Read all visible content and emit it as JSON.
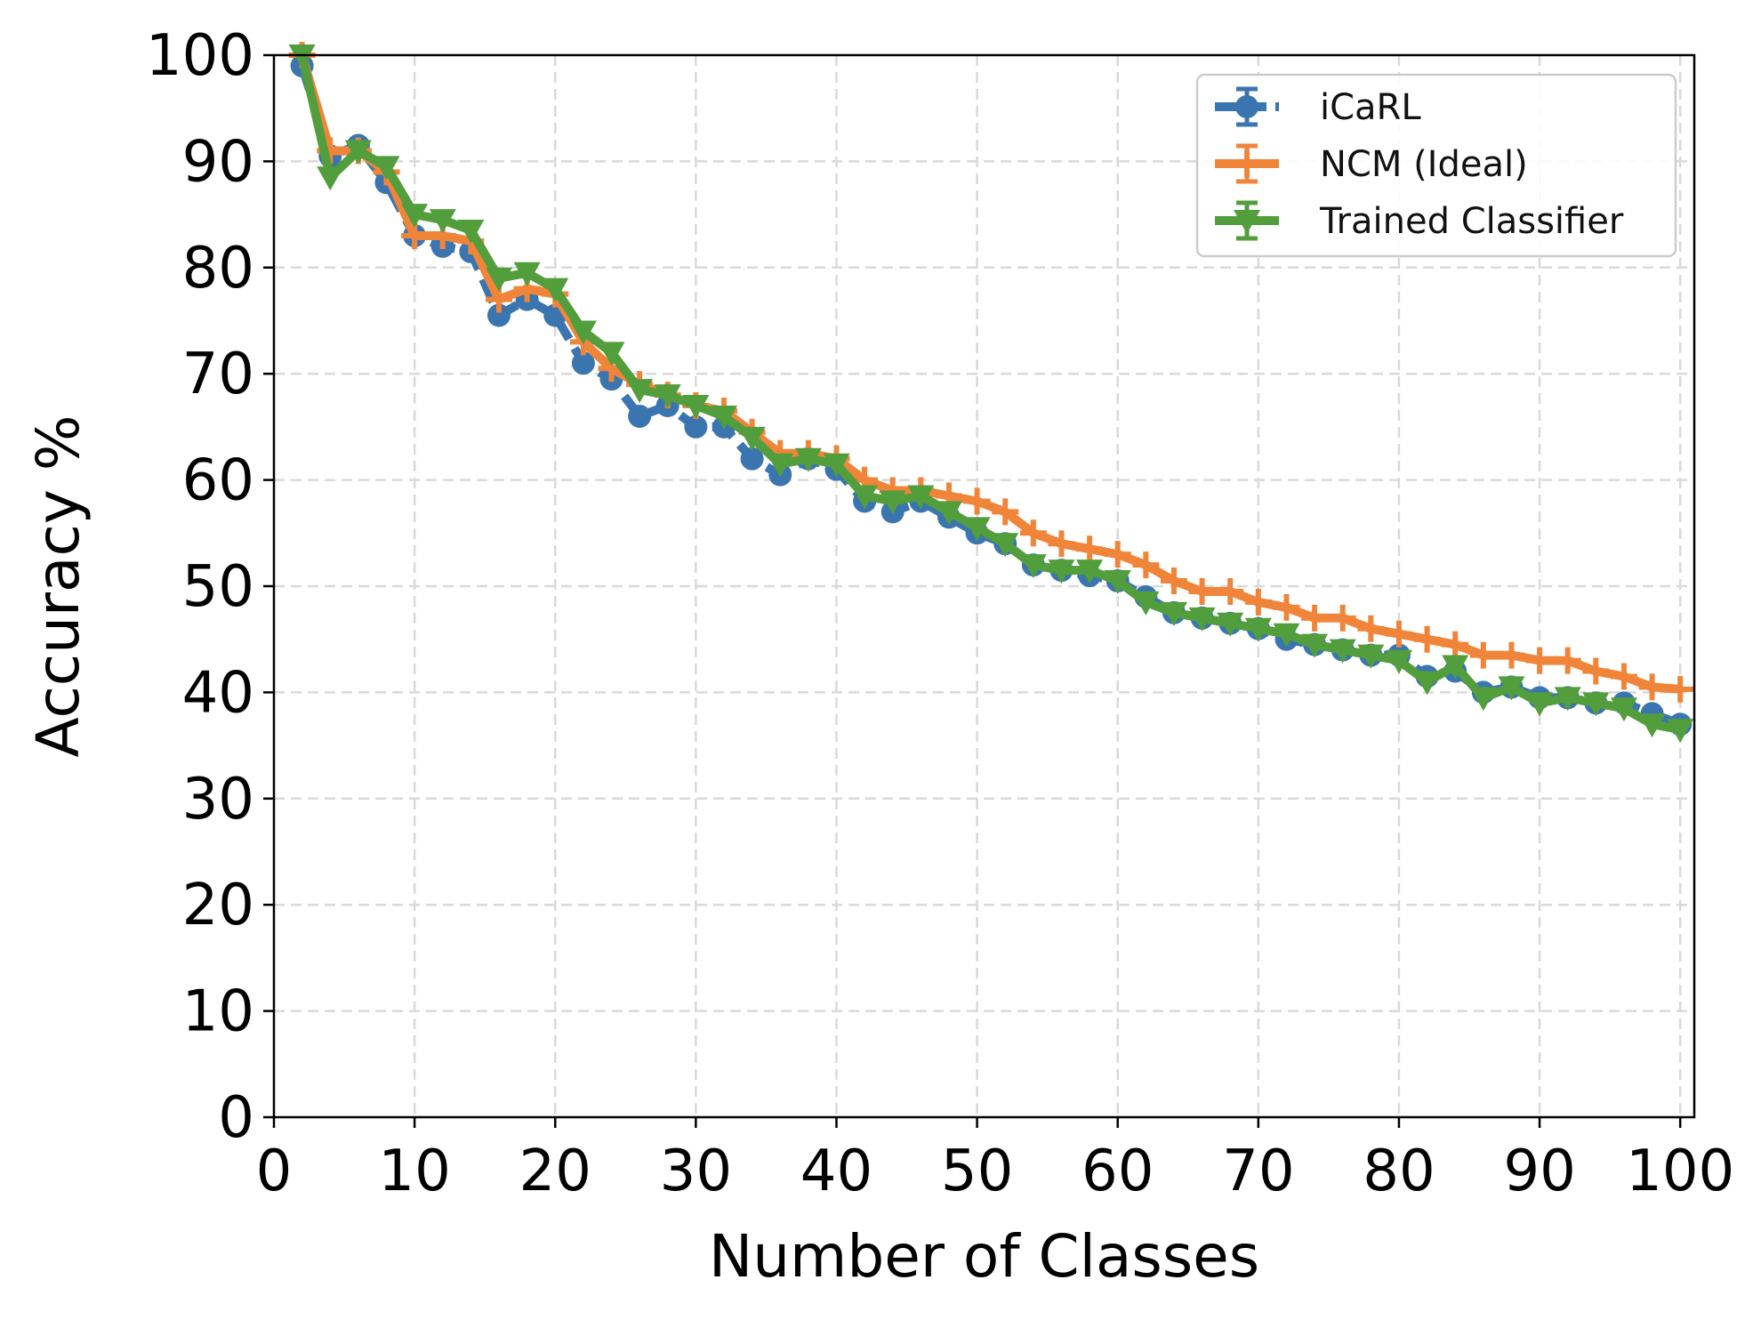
{
  "chart_data": {
    "type": "line",
    "title": "",
    "xlabel": "Number of Classes",
    "ylabel": "Accuracy %",
    "xlim": [
      0,
      101
    ],
    "ylim": [
      0,
      100
    ],
    "xticks": [
      0,
      10,
      20,
      30,
      40,
      50,
      60,
      70,
      80,
      90,
      100
    ],
    "yticks": [
      0,
      10,
      20,
      30,
      40,
      50,
      60,
      70,
      80,
      90,
      100
    ],
    "grid": true,
    "legend_position": "top-right",
    "x": [
      2,
      4,
      6,
      8,
      10,
      12,
      14,
      16,
      18,
      20,
      22,
      24,
      26,
      28,
      30,
      32,
      34,
      36,
      38,
      40,
      42,
      44,
      46,
      48,
      50,
      52,
      54,
      56,
      58,
      60,
      62,
      64,
      66,
      68,
      70,
      72,
      74,
      76,
      78,
      80,
      82,
      84,
      86,
      88,
      90,
      92,
      94,
      96,
      98,
      100
    ],
    "series": [
      {
        "name": "iCaRL",
        "color": "#3a75b0",
        "marker": "circle",
        "linestyle": "dashed",
        "values": [
          99,
          90.5,
          91.5,
          88,
          83,
          82,
          81.5,
          75.5,
          77,
          75.5,
          71,
          69.5,
          66,
          67,
          65,
          65,
          62,
          60.5,
          62,
          61,
          58,
          57,
          58,
          56.5,
          55,
          54,
          52,
          51.5,
          51,
          50.5,
          49,
          47.5,
          47,
          46.5,
          46,
          45,
          44.5,
          44,
          43.5,
          43.5,
          41.5,
          42,
          40,
          40.5,
          39.5,
          39.5,
          39,
          39,
          38,
          37
        ]
      },
      {
        "name": "NCM (Ideal)",
        "color": "#f0853a",
        "marker": "plus",
        "linestyle": "solid",
        "values": [
          100,
          91,
          91,
          89,
          83,
          83,
          82.5,
          77,
          78,
          77.5,
          73,
          70.5,
          69,
          68,
          67,
          66.5,
          64.5,
          62.5,
          62.5,
          62,
          60,
          59,
          59,
          58.5,
          58,
          57,
          55,
          54,
          53.5,
          53,
          52,
          50.5,
          49.5,
          49.5,
          48.5,
          48,
          47,
          47,
          46,
          45.5,
          45,
          44.5,
          43.5,
          43.5,
          43,
          43,
          42,
          41.5,
          40.5,
          40.3
        ]
      },
      {
        "name": "Trained Classifier",
        "color": "#529d3c",
        "marker": "triangle-down",
        "linestyle": "solid",
        "values": [
          100,
          88.5,
          91,
          89.5,
          85,
          84.5,
          83.5,
          79,
          79.5,
          78,
          74,
          72,
          68.5,
          68,
          67,
          66,
          64,
          61.5,
          62,
          61.5,
          58.5,
          58,
          58.5,
          57,
          55.5,
          54,
          52,
          51.5,
          51.5,
          50.5,
          48.5,
          47.5,
          47,
          46.5,
          46,
          45.5,
          44.5,
          44,
          43.5,
          43,
          41,
          42.5,
          39.5,
          40.5,
          39,
          39.5,
          39,
          38.5,
          37,
          36.5
        ]
      }
    ]
  }
}
